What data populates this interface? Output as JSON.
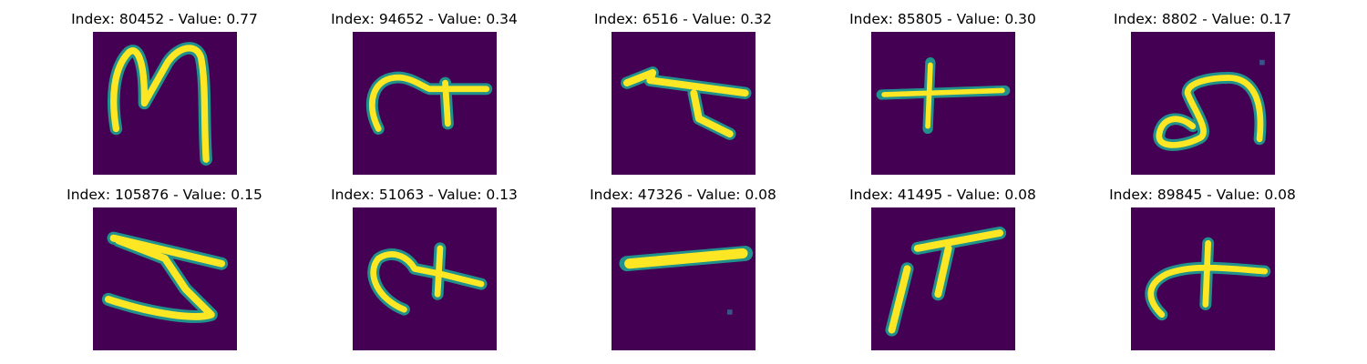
{
  "colors": {
    "background": "#440154",
    "stroke_core": "#fde725",
    "stroke_edge": "#21918c"
  },
  "panels": [
    {
      "title": "Index: 80452 - Value: 0.77",
      "glyph": "M-shape"
    },
    {
      "title": "Index: 94652 - Value: 0.34",
      "glyph": "hook-with-t"
    },
    {
      "title": "Index: 6516 - Value: 0.32",
      "glyph": "angled-stroke"
    },
    {
      "title": "Index: 85805 - Value: 0.30",
      "glyph": "plus-sign"
    },
    {
      "title": "Index: 8802 - Value: 0.17",
      "glyph": "curl"
    },
    {
      "title": "Index: 105876 - Value: 0.15",
      "glyph": "z-shape"
    },
    {
      "title": "Index: 51063 - Value: 0.13",
      "glyph": "hook-with-t"
    },
    {
      "title": "Index: 47326 - Value: 0.08",
      "glyph": "dash"
    },
    {
      "title": "Index: 41495 - Value: 0.08",
      "glyph": "pi-shape"
    },
    {
      "title": "Index: 89845 - Value: 0.08",
      "glyph": "hook-with-plus"
    }
  ]
}
